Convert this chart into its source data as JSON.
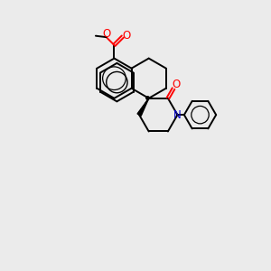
{
  "background_color": "#ebebeb",
  "bond_color": "#000000",
  "oxygen_color": "#ff0000",
  "nitrogen_color": "#0000cc",
  "figsize": [
    3.0,
    3.0
  ],
  "dpi": 100,
  "xlim": [
    0,
    10
  ],
  "ylim": [
    0,
    10
  ]
}
